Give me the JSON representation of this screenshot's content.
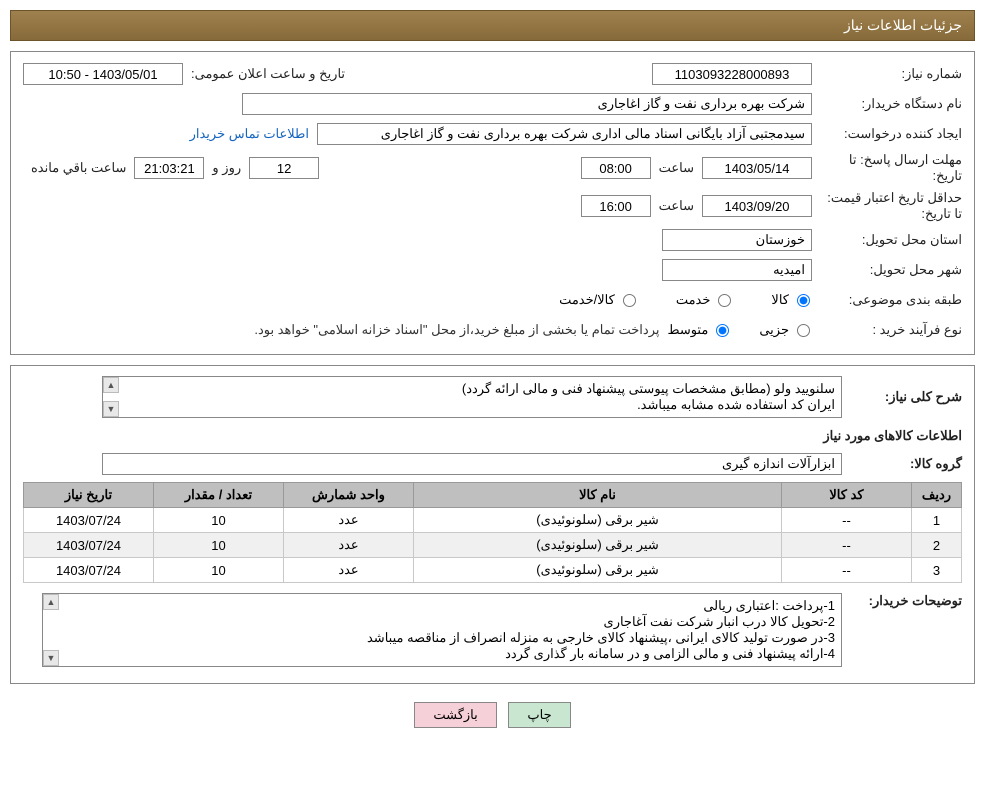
{
  "header": "جزئیات اطلاعات نیاز",
  "labels": {
    "need_no": "شماره نیاز:",
    "announce": "تاریخ و ساعت اعلان عمومی:",
    "buyer": "نام دستگاه خریدار:",
    "requester": "ایجاد کننده درخواست:",
    "contact": "اطلاعات تماس خریدار",
    "deadline": "مهلت ارسال پاسخ: تا تاریخ:",
    "hour": "ساعت",
    "day_and": "روز و",
    "remain": "ساعت باقي مانده",
    "validity": "حداقل تاریخ اعتبار قیمت: تا تاریخ:",
    "province": "استان محل تحویل:",
    "city": "شهر محل تحویل:",
    "category": "طبقه بندی موضوعی:",
    "cat_goods": "کالا",
    "cat_service": "خدمت",
    "cat_goodservice": "کالا/خدمت",
    "purchase_type": "نوع فرآیند خرید :",
    "pt_partial": "جزیی",
    "pt_medium": "متوسط",
    "purchase_note": "پرداخت تمام یا بخشی از مبلغ خرید،از محل \"اسناد خزانه اسلامی\" خواهد بود.",
    "general_desc": "شرح کلی نیاز:",
    "desc_text": "سلنویید ولو (مطابق مشخصات پیوستی پیشنهاد فنی و مالی ارائه گردد)\nایران کد استفاده شده مشابه میباشد.",
    "items_title": "اطلاعات کالاهای مورد نیاز",
    "group": "گروه کالا:",
    "group_val": "ابزارآلات اندازه گیری",
    "buyer_notes": "توضیحات خریدار:",
    "notes_text": "1-پرداخت :اعتباری ریالی\n2-تحویل کالا درب انبار شرکت نفت آغاجاری\n3-در صورت تولید کالای ایرانی ،پیشنهاد کالای خارجی به منزله انصراف از مناقصه میباشد\n4-ارائه پیشنهاد فنی و مالی الزامی و در سامانه بار گذاری گردد"
  },
  "values": {
    "need_no": "1103093228000893",
    "announce": "1403/05/01 - 10:50",
    "buyer": "شرکت بهره برداری نفت و گاز اغاجاری",
    "requester": "سیدمجتبی آزاد بایگانی اسناد مالی اداری شرکت بهره برداری نفت و گاز اغاجاری",
    "deadline_date": "1403/05/14",
    "deadline_hour": "08:00",
    "remain_days": "12",
    "remain_time": "21:03:21",
    "validity_date": "1403/09/20",
    "validity_hour": "16:00",
    "province": "خوزستان",
    "city": "امیدیه"
  },
  "table": {
    "headers": [
      "ردیف",
      "کد کالا",
      "نام کالا",
      "واحد شمارش",
      "تعداد / مقدار",
      "تاریخ نیاز"
    ],
    "col_widths": [
      "50px",
      "130px",
      "auto",
      "130px",
      "130px",
      "130px"
    ],
    "rows": [
      [
        "1",
        "--",
        "شیر برقی (سلونوئیدی)",
        "عدد",
        "10",
        "1403/07/24"
      ],
      [
        "2",
        "--",
        "شیر برقی (سلونوئیدی)",
        "عدد",
        "10",
        "1403/07/24"
      ],
      [
        "3",
        "--",
        "شیر برقی (سلونوئیدی)",
        "عدد",
        "10",
        "1403/07/24"
      ]
    ]
  },
  "buttons": {
    "print": "چاپ",
    "back": "بازگشت"
  },
  "colors": {
    "header_bg": "#8a6d3b",
    "header_text": "#ffffff",
    "border": "#888888",
    "th_bg": "#bfbfbf",
    "row_alt": "#f0f0f0",
    "link": "#1565c0",
    "btn_print": "#c8e6d0",
    "btn_back": "#f5d0d8"
  }
}
